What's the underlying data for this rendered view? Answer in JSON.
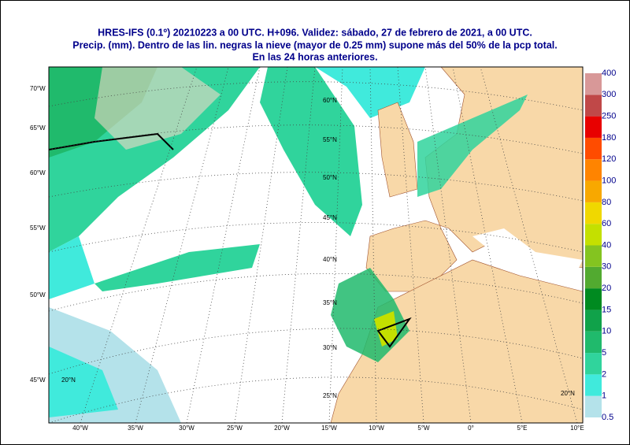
{
  "header": {
    "lines": [
      "HRES-IFS (0.1º) 20210223 a 00 UTC.  H+096. Validez: sábado, 27 de febrero de 2021,  a  00 UTC.",
      "Precip. (mm). Dentro de las lin. negras la nieve (mayor de 0.25 mm) supone más del 50% de la pcp total.",
      "En las 24 horas anteriores."
    ]
  },
  "legend": {
    "levels": [
      0.5,
      1,
      2,
      5,
      10,
      15,
      20,
      30,
      40,
      60,
      80,
      100,
      120,
      180,
      250,
      300,
      400
    ],
    "colors": [
      "#b4e2ea",
      "#40eadc",
      "#30d49c",
      "#20ba6c",
      "#10a24a",
      "#008a20",
      "#52aa30",
      "#84c420",
      "#c4e000",
      "#f0d800",
      "#f8a800",
      "#ff8400",
      "#ff4c00",
      "#e80000",
      "#c04848",
      "#d89898"
    ]
  },
  "map": {
    "lon_labels": [
      "40°W",
      "35°W",
      "30°W",
      "25°W",
      "20°W",
      "15°W",
      "10°W",
      "5°W",
      "0°",
      "5°E",
      "10°E"
    ],
    "left_labels": [
      "70°W",
      "65°W",
      "60°W",
      "55°W",
      "50°W",
      "45°W"
    ],
    "lat_labels": [
      "60°N",
      "55°N",
      "50°N",
      "45°N",
      "40°N",
      "35°N",
      "30°N",
      "25°N",
      "20°N",
      "20°N"
    ]
  }
}
